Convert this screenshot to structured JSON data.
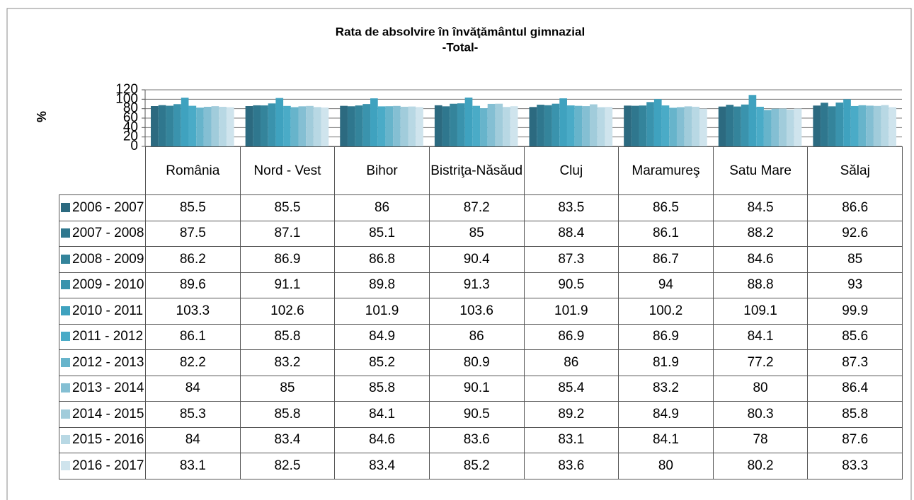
{
  "chart_data": {
    "type": "bar",
    "title": "Rata de absolvire în învăţământul gimnazial",
    "subtitle": "-Total-",
    "y_label": "%",
    "categories": [
      "România",
      "Nord - Vest",
      "Bihor",
      "Bistriţa-Năsăud",
      "Cluj",
      "Maramureş",
      "Satu Mare",
      "Sălaj"
    ],
    "ylim": [
      0,
      120
    ],
    "yticks": [
      0,
      20,
      40,
      60,
      80,
      100,
      120
    ],
    "grid": true,
    "legend": "table",
    "series": [
      {
        "name": "2006 - 2007",
        "color": "#2c6a80",
        "values": [
          85.5,
          85.5,
          86,
          87.2,
          83.5,
          86.5,
          84.5,
          86.6
        ]
      },
      {
        "name": "2007 - 2008",
        "color": "#2f778e",
        "values": [
          87.5,
          87.1,
          85.1,
          85,
          88.4,
          86.1,
          88.2,
          92.6
        ]
      },
      {
        "name": "2008 - 2009",
        "color": "#34849b",
        "values": [
          86.2,
          86.9,
          86.8,
          90.4,
          87.3,
          86.7,
          84.6,
          85
        ]
      },
      {
        "name": "2009 - 2010",
        "color": "#3a93ad",
        "values": [
          89.6,
          91.1,
          89.8,
          91.3,
          90.5,
          94,
          88.8,
          93
        ]
      },
      {
        "name": "2010 - 2011",
        "color": "#3fa2bf",
        "values": [
          103.3,
          102.6,
          101.9,
          103.6,
          101.9,
          100.2,
          109.1,
          99.9
        ]
      },
      {
        "name": "2011 - 2012",
        "color": "#4aabc7",
        "values": [
          86.1,
          85.8,
          84.9,
          86,
          86.9,
          86.9,
          84.1,
          85.6
        ]
      },
      {
        "name": "2012 - 2013",
        "color": "#67b4cb",
        "values": [
          82.2,
          83.2,
          85.2,
          80.9,
          86,
          81.9,
          77.2,
          87.3
        ]
      },
      {
        "name": "2013 - 2014",
        "color": "#84bfd3",
        "values": [
          84,
          85,
          85.8,
          90.1,
          85.4,
          83.2,
          80,
          86.4
        ]
      },
      {
        "name": "2014 - 2015",
        "color": "#a1ccdb",
        "values": [
          85.3,
          85.8,
          84.1,
          90.5,
          89.2,
          84.9,
          80.3,
          85.8
        ]
      },
      {
        "name": "2015 - 2016",
        "color": "#b8d8e4",
        "values": [
          84,
          83.4,
          84.6,
          83.6,
          83.1,
          84.1,
          78,
          87.6
        ]
      },
      {
        "name": "2016 - 2017",
        "color": "#cfe4ed",
        "values": [
          83.1,
          82.5,
          83.4,
          85.2,
          83.6,
          80,
          80.2,
          83.3
        ]
      }
    ]
  }
}
